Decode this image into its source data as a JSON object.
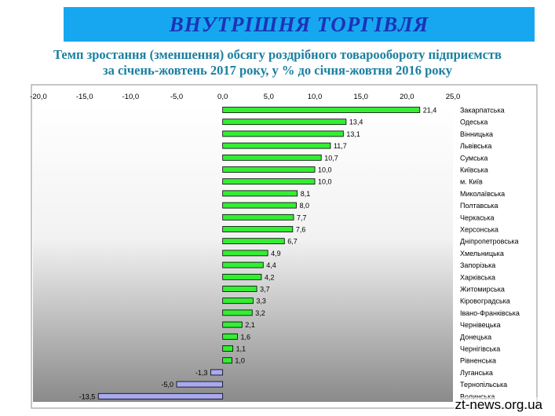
{
  "header": {
    "banner_title": "ВНУТРІШНЯ ТОРГІВЛЯ",
    "subtitle_line1": "Темп зростання (зменшення) обсягу роздрібного товарообороту підприємств",
    "subtitle_line2": "за січень-жовтень 2017 року, у % до січня-жовтня 2016 року"
  },
  "watermark": "zt-news.org.ua",
  "colors": {
    "banner_bg": "#16a7f0",
    "banner_text": "#1c33b8",
    "subtitle_text": "#1a7fa0",
    "positive_bar": "#33ee33",
    "negative_bar": "#a9a9f0"
  },
  "chart_data": {
    "type": "bar",
    "orientation": "horizontal",
    "xlim": [
      -20,
      25
    ],
    "x_ticks": [
      "-20,0",
      "-15,0",
      "-10,0",
      "-5,0",
      "0,0",
      "5,0",
      "10,0",
      "15,0",
      "20,0",
      "25,0"
    ],
    "x_tick_values": [
      -20,
      -15,
      -10,
      -5,
      0,
      5,
      10,
      15,
      20,
      25
    ],
    "grid": false,
    "categories": [
      "Закарпатська",
      "Одеська",
      "Вінницька",
      "Львівська",
      "Сумська",
      "Київська",
      "м. Київ",
      "Миколаївська",
      "Полтавська",
      "Черкаська",
      "Херсонська",
      "Дніпропетровська",
      "Хмельницька",
      "Запорізька",
      "Харківська",
      "Житомирська",
      "Кіровоградська",
      "Івано-Франківська",
      "Чернівецька",
      "Донецька",
      "Чернігівська",
      "Рівненська",
      "Луганська",
      "Тернопільська",
      "Волинська"
    ],
    "values": [
      21.4,
      13.4,
      13.1,
      11.7,
      10.7,
      10.0,
      10.0,
      8.1,
      8.0,
      7.7,
      7.6,
      6.7,
      4.9,
      4.4,
      4.2,
      3.7,
      3.3,
      3.2,
      2.1,
      1.6,
      1.1,
      1.0,
      -1.3,
      -5.0,
      -13.5
    ],
    "value_labels": [
      "21,4",
      "13,4",
      "13,1",
      "11,7",
      "10,7",
      "10,0",
      "10,0",
      "8,1",
      "8,0",
      "7,7",
      "7,6",
      "6,7",
      "4,9",
      "4,4",
      "4,2",
      "3,7",
      "3,3",
      "3,2",
      "2,1",
      "1,6",
      "1,1",
      "1,0",
      "-1,3",
      "-5,0",
      "-13,5"
    ]
  }
}
